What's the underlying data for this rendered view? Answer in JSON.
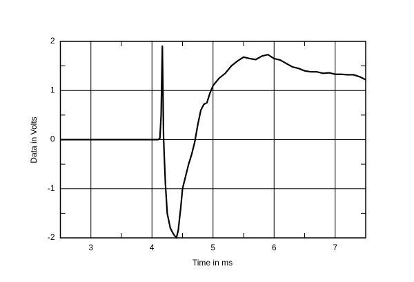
{
  "chart_data": {
    "type": "line",
    "xlabel": "Time in ms",
    "ylabel": "Data in Volts",
    "xlim": [
      2.5,
      7.5
    ],
    "ylim": [
      -2,
      2
    ],
    "xticks": [
      3,
      4,
      5,
      6,
      7
    ],
    "yticks": [
      -2,
      -1,
      0,
      1,
      2
    ],
    "xticks_minor": [
      3.5,
      4.5,
      5.5,
      6.5
    ],
    "yticks_minor": [
      -1.5,
      -0.5,
      0.5,
      1.5
    ],
    "grid": true,
    "series": [
      {
        "color": "#000000",
        "x": [
          2.5,
          4.0,
          4.1,
          4.13,
          4.15,
          4.17,
          4.19,
          4.2,
          4.22,
          4.25,
          4.3,
          4.35,
          4.4,
          4.43,
          4.47,
          4.5,
          4.55,
          4.6,
          4.65,
          4.7,
          4.75,
          4.8,
          4.85,
          4.9,
          4.95,
          5.0,
          5.1,
          5.2,
          5.3,
          5.4,
          5.5,
          5.6,
          5.7,
          5.8,
          5.9,
          6.0,
          6.1,
          6.2,
          6.3,
          6.4,
          6.5,
          6.6,
          6.7,
          6.8,
          6.9,
          7.0,
          7.1,
          7.2,
          7.3,
          7.4,
          7.5
        ],
        "values": [
          0,
          0,
          0,
          0.03,
          0.5,
          1.9,
          0.05,
          -0.3,
          -0.9,
          -1.5,
          -1.8,
          -1.92,
          -2.0,
          -1.85,
          -1.4,
          -1.0,
          -0.75,
          -0.5,
          -0.3,
          -0.05,
          0.3,
          0.6,
          0.72,
          0.75,
          0.95,
          1.1,
          1.25,
          1.35,
          1.5,
          1.6,
          1.68,
          1.65,
          1.63,
          1.7,
          1.73,
          1.65,
          1.62,
          1.55,
          1.48,
          1.45,
          1.4,
          1.38,
          1.38,
          1.35,
          1.36,
          1.33,
          1.33,
          1.32,
          1.32,
          1.28,
          1.22
        ]
      }
    ]
  }
}
